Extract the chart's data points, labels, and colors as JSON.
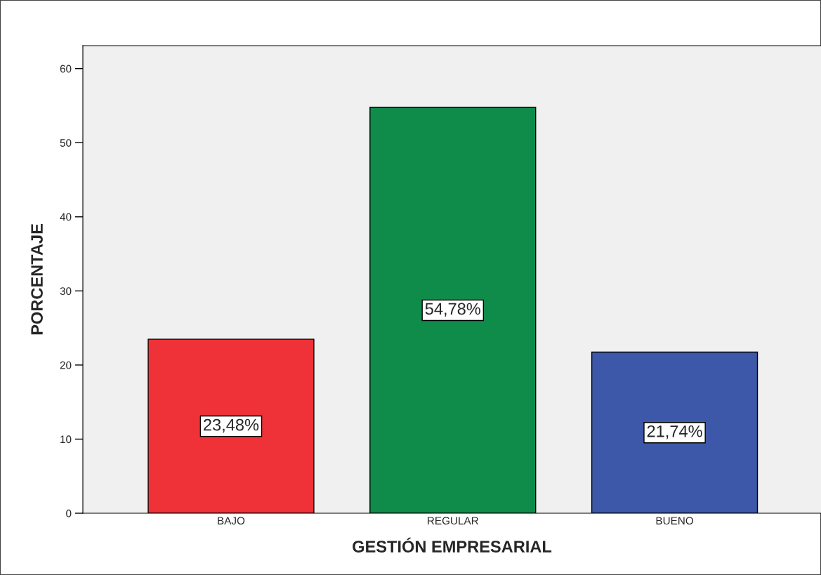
{
  "chart_data": {
    "type": "bar",
    "xlabel": "GESTIÓN EMPRESARIAL",
    "ylabel": "PORCENTAJE",
    "categories": [
      "BAJO",
      "REGULAR",
      "BUENO"
    ],
    "values": [
      23.48,
      54.78,
      21.74
    ],
    "colors": [
      "#ee3237",
      "#108c4a",
      "#3d58a8"
    ],
    "value_labels": [
      "23,48%",
      "54,78%",
      "21,74%"
    ],
    "ylim": [
      0,
      63.1
    ],
    "yticks": [
      0,
      10,
      20,
      30,
      40,
      50,
      60
    ],
    "grid": false,
    "legend": false
  }
}
